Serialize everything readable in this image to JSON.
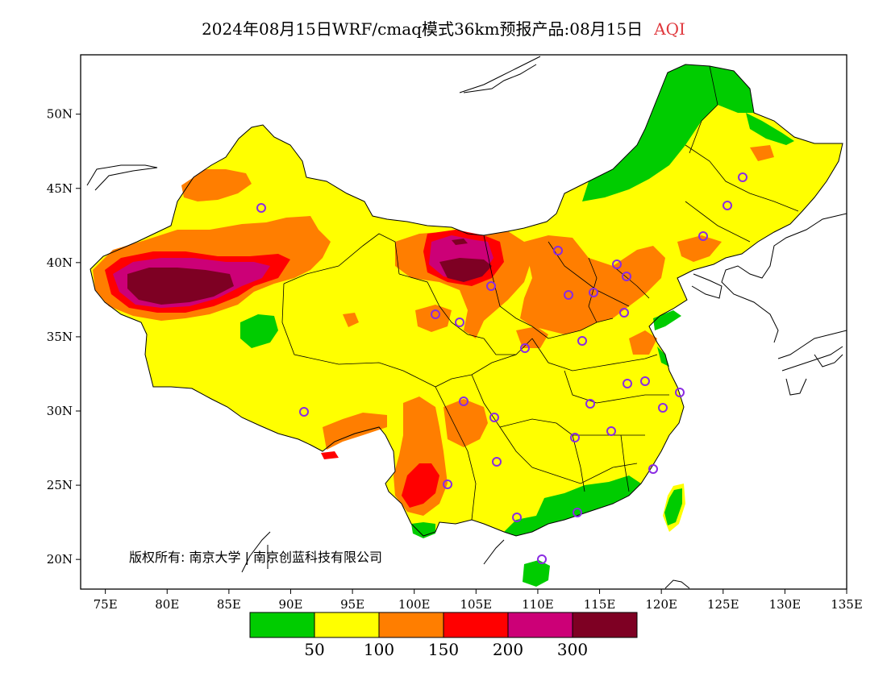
{
  "header": {
    "title": "2024年08月15日WRF/cmaq模式36km预报产品:08月15日",
    "variable": "AQI",
    "variable_color": "#e0393e"
  },
  "map": {
    "lon_range": [
      73,
      135
    ],
    "lat_range": [
      18,
      54
    ],
    "lon_ticks": [
      {
        "value": 75,
        "label": "75E"
      },
      {
        "value": 80,
        "label": "80E"
      },
      {
        "value": 85,
        "label": "85E"
      },
      {
        "value": 90,
        "label": "90E"
      },
      {
        "value": 95,
        "label": "95E"
      },
      {
        "value": 100,
        "label": "100E"
      },
      {
        "value": 105,
        "label": "105E"
      },
      {
        "value": 110,
        "label": "110E"
      },
      {
        "value": 115,
        "label": "115E"
      },
      {
        "value": 120,
        "label": "120E"
      },
      {
        "value": 125,
        "label": "125E"
      },
      {
        "value": 130,
        "label": "130E"
      },
      {
        "value": 135,
        "label": "135E"
      }
    ],
    "lat_ticks": [
      {
        "value": 20,
        "label": "20N"
      },
      {
        "value": 25,
        "label": "25N"
      },
      {
        "value": 30,
        "label": "30N"
      },
      {
        "value": 35,
        "label": "35N"
      },
      {
        "value": 40,
        "label": "40N"
      },
      {
        "value": 45,
        "label": "45N"
      },
      {
        "value": 50,
        "label": "50N"
      }
    ],
    "copyright": "版权所有: 南京大学 | 南京创蓝科技有限公司",
    "station_color": "#8a2be2"
  },
  "legend": {
    "bins": [
      {
        "color": "#00cc00"
      },
      {
        "color": "#ffff00"
      },
      {
        "color": "#ff7e00"
      },
      {
        "color": "#ff0000"
      },
      {
        "color": "#cc0077"
      },
      {
        "color": "#7e0023"
      }
    ],
    "labels": [
      "50",
      "100",
      "150",
      "200",
      "300"
    ]
  }
}
